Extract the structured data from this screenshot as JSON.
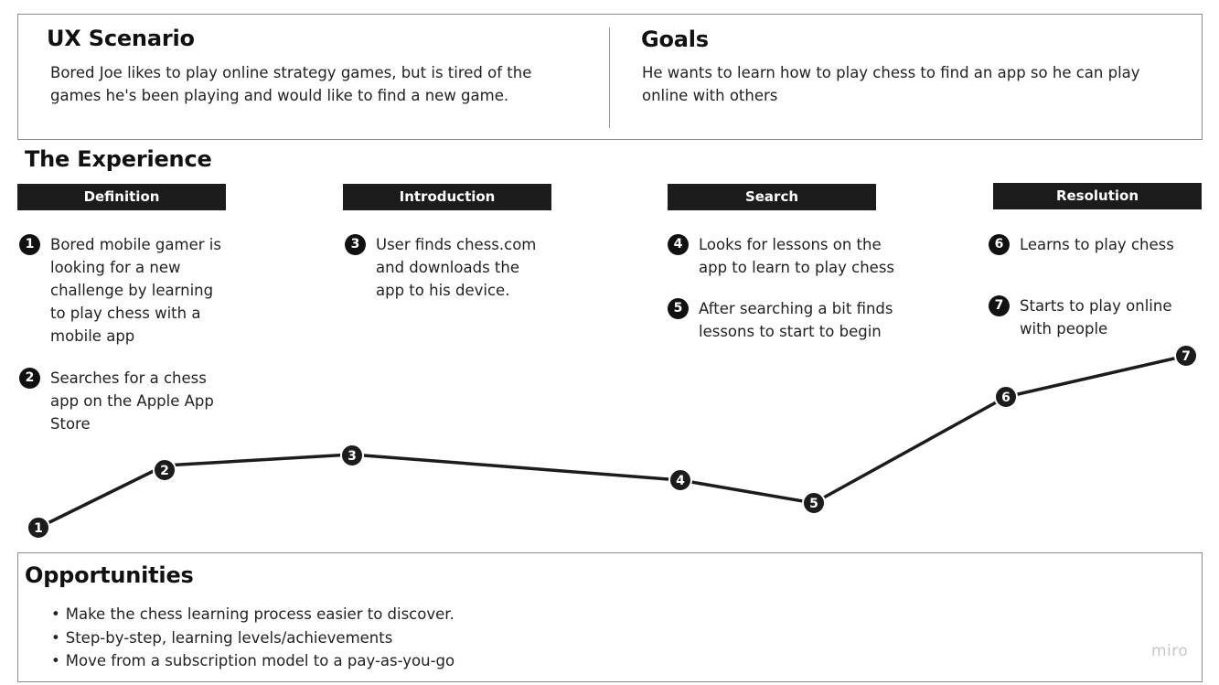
{
  "scenario": {
    "title": "UX Scenario",
    "text": "Bored Joe likes to play online strategy games, but is tired of the games he's been playing and would like to find a new game."
  },
  "goals": {
    "title": "Goals",
    "text": "He wants to learn how to play chess to find an app so he can play online with others"
  },
  "experience": {
    "title": "The Experience",
    "phases": [
      "Definition",
      "Introduction",
      "Search",
      "Resolution"
    ],
    "steps": [
      {
        "num": "1",
        "text": "Bored mobile gamer is looking for a new challenge by learning to play chess with a mobile app"
      },
      {
        "num": "2",
        "text": "Searches for a chess app on the Apple App Store"
      },
      {
        "num": "3",
        "text": "User finds chess.com and downloads the app to his device."
      },
      {
        "num": "4",
        "text": "Looks for lessons on the app to learn to play chess"
      },
      {
        "num": "5",
        "text": "After searching a bit finds lessons to start to begin"
      },
      {
        "num": "6",
        "text": "Learns to play chess"
      },
      {
        "num": "7",
        "text": "Starts to play online with people"
      }
    ]
  },
  "opportunities": {
    "title": "Opportunities",
    "items": [
      "Make the chess learning process easier to discover.",
      "Step-by-step, learning levels/achievements",
      "Move from a subscription model to a pay-as-you-go"
    ]
  },
  "watermark": "miro",
  "colors": {
    "dark": "#1c1c1c",
    "border": "#8c8c8c",
    "watermark": "#c8c8c8"
  }
}
